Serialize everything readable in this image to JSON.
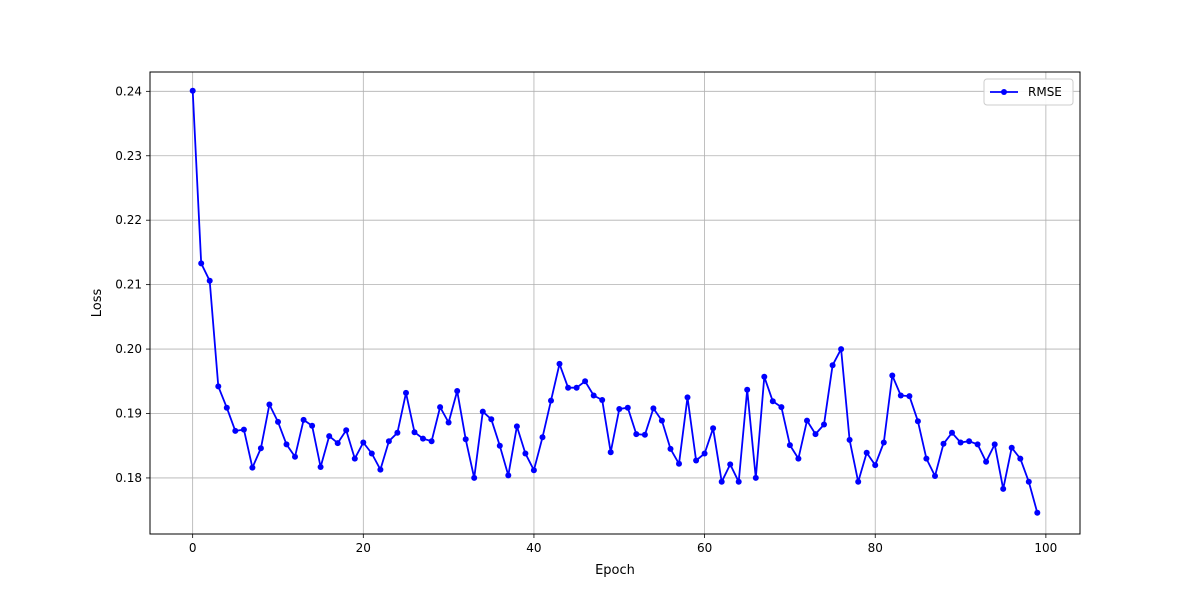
{
  "chart_data": {
    "type": "line",
    "xlabel": "Epoch",
    "ylabel": "Loss",
    "xlim": [
      -5,
      104
    ],
    "ylim": [
      0.1713,
      0.243
    ],
    "xticks": [
      0,
      20,
      40,
      60,
      80,
      100
    ],
    "yticks": [
      0.18,
      0.19,
      0.2,
      0.21,
      0.22,
      0.23,
      0.24
    ],
    "grid": true,
    "legend_position": "top-right",
    "series": [
      {
        "name": "RMSE",
        "color": "#0000ff",
        "marker": "circle",
        "x": [
          0,
          1,
          2,
          3,
          4,
          5,
          6,
          7,
          8,
          9,
          10,
          11,
          12,
          13,
          14,
          15,
          16,
          17,
          18,
          19,
          20,
          21,
          22,
          23,
          24,
          25,
          26,
          27,
          28,
          29,
          30,
          31,
          32,
          33,
          34,
          35,
          36,
          37,
          38,
          39,
          40,
          41,
          42,
          43,
          44,
          45,
          46,
          47,
          48,
          49,
          50,
          51,
          52,
          53,
          54,
          55,
          56,
          57,
          58,
          59,
          60,
          61,
          62,
          63,
          64,
          65,
          66,
          67,
          68,
          69,
          70,
          71,
          72,
          73,
          74,
          75,
          76,
          77,
          78,
          79,
          80,
          81,
          82,
          83,
          84,
          85,
          86,
          87,
          88,
          89,
          90,
          91,
          92,
          93,
          94,
          95,
          96,
          97,
          98,
          99
        ],
        "values": [
          0.2401,
          0.2133,
          0.2106,
          0.1942,
          0.1909,
          0.1873,
          0.1875,
          0.1816,
          0.1846,
          0.1914,
          0.1887,
          0.1852,
          0.1833,
          0.189,
          0.1881,
          0.1817,
          0.1865,
          0.1854,
          0.1874,
          0.183,
          0.1855,
          0.1838,
          0.1813,
          0.1857,
          0.187,
          0.1932,
          0.1871,
          0.1861,
          0.1857,
          0.191,
          0.1886,
          0.1935,
          0.186,
          0.18,
          0.1903,
          0.1891,
          0.185,
          0.1804,
          0.188,
          0.1838,
          0.1812,
          0.1863,
          0.192,
          0.1977,
          0.194,
          0.194,
          0.195,
          0.1928,
          0.1921,
          0.184,
          0.1907,
          0.1909,
          0.1868,
          0.1867,
          0.1908,
          0.1889,
          0.1845,
          0.1822,
          0.1925,
          0.1827,
          0.1838,
          0.1877,
          0.1794,
          0.1821,
          0.1794,
          0.1937,
          0.18,
          0.1957,
          0.1919,
          0.191,
          0.1851,
          0.183,
          0.1889,
          0.1868,
          0.1883,
          0.1975,
          0.2,
          0.1859,
          0.1794,
          0.1839,
          0.182,
          0.1855,
          0.1959,
          0.1928,
          0.1927,
          0.1888,
          0.183,
          0.1803,
          0.1853,
          0.187,
          0.1855,
          0.1857,
          0.1852,
          0.1825,
          0.1852,
          0.1783,
          0.1847,
          0.183,
          0.1794,
          0.1746
        ]
      }
    ]
  }
}
